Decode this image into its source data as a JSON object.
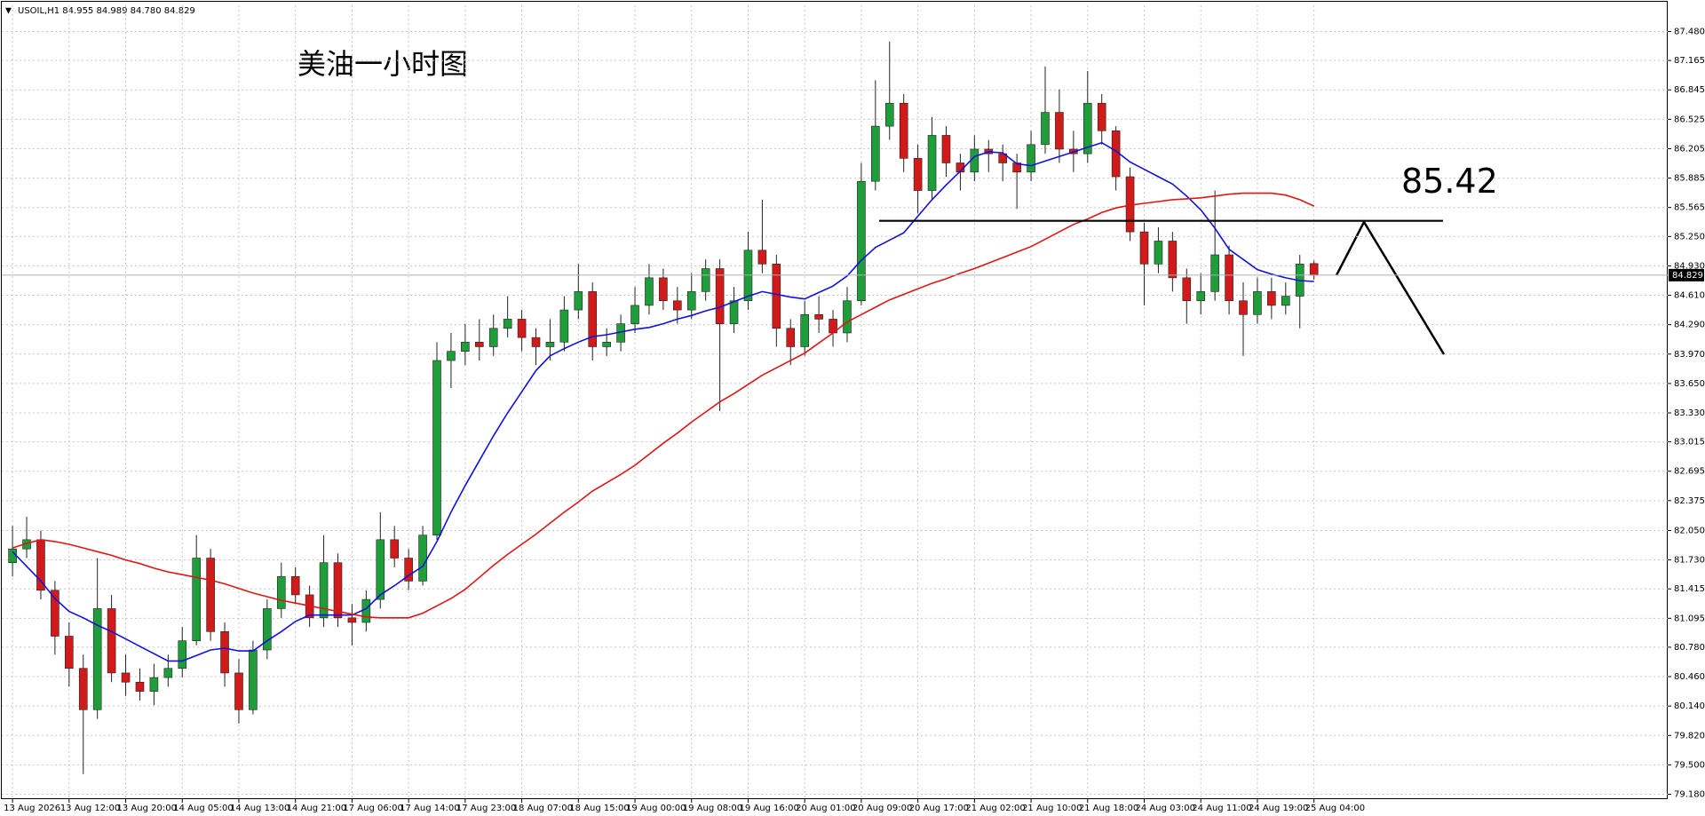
{
  "chart_data": {
    "type": "candlestick",
    "header": "USOIL,H1  84.955 84.989 84.780 84.829",
    "title": "美油一小时图",
    "level": 85.42,
    "up_color": "#1f9d3a",
    "down_color": "#d11a1a",
    "grid": true,
    "categories": [
      "13 Aug 2026",
      null,
      null,
      null,
      "13 Aug 12:00",
      null,
      null,
      null,
      "13 Aug 20:00",
      null,
      null,
      null,
      "14 Aug 05:00",
      null,
      null,
      null,
      "14 Aug 13:00",
      null,
      null,
      null,
      "14 Aug 21:00",
      null,
      null,
      null,
      "17 Aug 06:00",
      null,
      null,
      null,
      "17 Aug 14:00",
      null,
      null,
      null,
      "17 Aug 23:00",
      null,
      null,
      null,
      "18 Aug 07:00",
      null,
      null,
      null,
      "18 Aug 15:00",
      null,
      null,
      null,
      "19 Aug 00:00",
      null,
      null,
      null,
      "19 Aug 08:00",
      null,
      null,
      null,
      "19 Aug 16:00",
      null,
      null,
      null,
      "20 Aug 01:00",
      null,
      null,
      null,
      "20 Aug 09:00",
      null,
      null,
      null,
      "20 Aug 17:00",
      null,
      null,
      null,
      "21 Aug 02:00",
      null,
      null,
      null,
      "21 Aug 10:00",
      null,
      null,
      null,
      "21 Aug 18:00",
      null,
      null,
      null,
      "24 Aug 03:00",
      null,
      null,
      null,
      "24 Aug 11:00",
      null,
      null,
      null,
      "24 Aug 19:00",
      null,
      null,
      null,
      "25 Aug 04:00"
    ],
    "open": [
      81.7,
      81.85,
      81.95,
      81.4,
      80.9,
      80.55,
      80.1,
      81.2,
      80.5,
      80.4,
      80.3,
      80.45,
      80.55,
      80.85,
      81.75,
      80.95,
      80.5,
      80.1,
      80.75,
      81.2,
      81.55,
      81.35,
      81.1,
      81.7,
      81.1,
      81.05,
      81.3,
      81.95,
      81.75,
      81.5,
      82.0,
      83.9,
      84.0,
      84.1,
      84.05,
      84.25,
      84.35,
      84.15,
      84.05,
      84.1,
      84.45,
      84.65,
      84.05,
      84.1,
      84.3,
      84.5,
      84.8,
      84.55,
      84.45,
      84.65,
      84.9,
      84.3,
      84.55,
      85.1,
      84.95,
      84.25,
      84.05,
      84.4,
      84.35,
      84.2,
      84.55,
      85.85,
      86.45,
      86.7,
      86.1,
      85.75,
      86.35,
      86.05,
      85.95,
      86.2,
      86.15,
      86.05,
      85.95,
      86.25,
      86.6,
      86.2,
      86.15,
      86.7,
      86.4,
      85.9,
      85.3,
      84.95,
      85.2,
      84.8,
      84.55,
      84.65,
      85.05,
      84.55,
      84.4,
      84.65,
      84.5,
      84.6,
      84.955
    ],
    "high": [
      82.1,
      82.2,
      82.05,
      81.5,
      81.05,
      80.7,
      81.75,
      81.35,
      80.7,
      80.55,
      80.6,
      80.7,
      81.0,
      82.0,
      81.85,
      81.05,
      80.65,
      80.85,
      81.3,
      81.7,
      81.65,
      81.45,
      82.0,
      81.8,
      81.25,
      81.4,
      82.25,
      82.1,
      81.85,
      82.1,
      84.1,
      84.2,
      84.3,
      84.35,
      84.4,
      84.6,
      84.45,
      84.25,
      84.35,
      84.6,
      84.95,
      84.75,
      84.25,
      84.4,
      84.7,
      84.95,
      84.9,
      84.7,
      84.85,
      85.0,
      85.0,
      84.7,
      85.3,
      85.65,
      85.05,
      84.35,
      84.55,
      84.6,
      84.45,
      84.7,
      86.05,
      86.95,
      87.37,
      86.8,
      86.25,
      86.55,
      86.45,
      86.15,
      86.35,
      86.3,
      86.25,
      86.15,
      86.4,
      87.1,
      86.85,
      86.4,
      87.05,
      86.8,
      86.45,
      86.0,
      85.4,
      85.35,
      85.3,
      84.9,
      84.85,
      85.75,
      85.15,
      84.75,
      84.8,
      84.8,
      84.75,
      85.05,
      84.989
    ],
    "low": [
      81.55,
      81.75,
      81.3,
      80.7,
      80.35,
      79.4,
      80.0,
      80.4,
      80.25,
      80.2,
      80.15,
      80.35,
      80.45,
      80.8,
      80.85,
      80.35,
      79.95,
      80.05,
      80.65,
      81.1,
      81.25,
      81.0,
      81.0,
      81.0,
      80.8,
      80.95,
      81.2,
      81.65,
      81.4,
      81.45,
      81.95,
      83.6,
      83.85,
      83.9,
      83.95,
      84.15,
      84.0,
      83.85,
      83.9,
      84.0,
      84.35,
      83.9,
      83.95,
      84.0,
      84.2,
      84.4,
      84.45,
      84.3,
      84.35,
      84.55,
      83.35,
      84.2,
      84.45,
      84.85,
      84.05,
      83.85,
      83.95,
      84.2,
      84.05,
      84.1,
      84.5,
      85.75,
      86.3,
      85.95,
      85.5,
      85.65,
      85.9,
      85.75,
      85.85,
      85.95,
      85.85,
      85.55,
      85.85,
      86.15,
      86.05,
      85.95,
      86.05,
      86.25,
      85.75,
      85.2,
      84.5,
      84.85,
      84.65,
      84.3,
      84.4,
      84.55,
      84.4,
      83.95,
      84.3,
      84.35,
      84.4,
      84.25,
      84.78
    ],
    "close": [
      81.85,
      81.95,
      81.4,
      80.9,
      80.55,
      80.1,
      81.2,
      80.5,
      80.4,
      80.3,
      80.45,
      80.55,
      80.85,
      81.75,
      80.95,
      80.5,
      80.1,
      80.75,
      81.2,
      81.55,
      81.35,
      81.1,
      81.7,
      81.1,
      81.05,
      81.3,
      81.95,
      81.75,
      81.5,
      82.0,
      83.9,
      84.0,
      84.1,
      84.05,
      84.25,
      84.35,
      84.15,
      84.05,
      84.1,
      84.45,
      84.65,
      84.05,
      84.1,
      84.3,
      84.5,
      84.8,
      84.55,
      84.45,
      84.65,
      84.9,
      84.3,
      84.55,
      85.1,
      84.95,
      84.25,
      84.05,
      84.4,
      84.35,
      84.2,
      84.55,
      85.85,
      86.45,
      86.7,
      86.1,
      85.75,
      86.35,
      86.05,
      85.95,
      86.2,
      86.15,
      86.05,
      85.95,
      86.25,
      86.6,
      86.2,
      86.15,
      86.7,
      86.4,
      85.9,
      85.3,
      84.95,
      85.2,
      84.8,
      84.55,
      84.65,
      85.05,
      84.55,
      84.4,
      84.65,
      84.5,
      84.6,
      84.95,
      84.829
    ],
    "series": [
      {
        "color": "#1010e0",
        "values": [
          81.82,
          81.66,
          81.5,
          81.31,
          81.17,
          81.1,
          81.02,
          80.95,
          80.87,
          80.79,
          80.71,
          80.63,
          80.63,
          80.69,
          80.75,
          80.77,
          80.74,
          80.74,
          80.85,
          80.95,
          81.06,
          81.13,
          81.13,
          81.13,
          81.13,
          81.2,
          81.35,
          81.45,
          81.56,
          81.66,
          81.93,
          82.25,
          82.54,
          82.81,
          83.08,
          83.33,
          83.56,
          83.79,
          83.95,
          84.03,
          84.1,
          84.16,
          84.18,
          84.21,
          84.24,
          84.26,
          84.3,
          84.35,
          84.39,
          84.44,
          84.48,
          84.54,
          84.6,
          84.65,
          84.62,
          84.59,
          84.57,
          84.64,
          84.71,
          84.82,
          84.99,
          85.13,
          85.21,
          85.29,
          85.47,
          85.65,
          85.81,
          85.96,
          86.12,
          86.17,
          86.16,
          86.04,
          86.02,
          86.07,
          86.12,
          86.17,
          86.22,
          86.27,
          86.18,
          86.06,
          85.98,
          85.9,
          85.82,
          85.69,
          85.54,
          85.34,
          85.11,
          85.0,
          84.89,
          84.84,
          84.8,
          84.77,
          84.76
        ]
      },
      {
        "color": "#e01515",
        "values": [
          81.86,
          81.91,
          81.95,
          81.93,
          81.9,
          81.86,
          81.82,
          81.78,
          81.73,
          81.69,
          81.64,
          81.6,
          81.57,
          81.54,
          81.51,
          81.47,
          81.42,
          81.37,
          81.33,
          81.29,
          81.26,
          81.23,
          81.2,
          81.17,
          81.14,
          81.11,
          81.1,
          81.1,
          81.1,
          81.15,
          81.23,
          81.31,
          81.41,
          81.54,
          81.67,
          81.79,
          81.9,
          82.01,
          82.13,
          82.25,
          82.36,
          82.48,
          82.57,
          82.66,
          82.76,
          82.88,
          83.0,
          83.11,
          83.23,
          83.34,
          83.45,
          83.54,
          83.64,
          83.74,
          83.82,
          83.9,
          83.98,
          84.09,
          84.2,
          84.32,
          84.4,
          84.48,
          84.56,
          84.62,
          84.68,
          84.74,
          84.79,
          84.85,
          84.9,
          84.96,
          85.02,
          85.08,
          85.14,
          85.22,
          85.3,
          85.38,
          85.44,
          85.51,
          85.56,
          85.59,
          85.61,
          85.63,
          85.65,
          85.66,
          85.67,
          85.69,
          85.71,
          85.72,
          85.72,
          85.72,
          85.7,
          85.65,
          85.58
        ]
      }
    ],
    "ylim": [
      79.127,
      87.765
    ],
    "yticks": [
      {
        "value": 79.18,
        "label": "79.180"
      },
      {
        "value": 79.5,
        "label": "79.500"
      },
      {
        "value": 79.82,
        "label": "79.820"
      },
      {
        "value": 80.14,
        "label": "80.140"
      },
      {
        "value": 80.46,
        "label": "80.460"
      },
      {
        "value": 80.78,
        "label": "80.780"
      },
      81.095,
      81.415,
      {
        "value": 81.73,
        "label": "81.730"
      },
      {
        "value": 82.05,
        "label": "82.050"
      },
      82.375,
      82.695,
      83.015,
      {
        "value": 83.33,
        "label": "83.330"
      },
      {
        "value": 83.65,
        "label": "83.650"
      },
      {
        "value": 83.97,
        "label": "83.970"
      },
      {
        "value": 84.29,
        "label": "84.290"
      },
      {
        "value": 84.61,
        "label": "84.610"
      },
      {
        "value": 84.93,
        "label": "84.930"
      },
      {
        "value": 85.25,
        "label": "85.250"
      },
      85.565,
      85.885,
      86.205,
      86.525,
      86.845,
      87.165,
      {
        "value": 87.48,
        "label": "87.480"
      }
    ]
  }
}
